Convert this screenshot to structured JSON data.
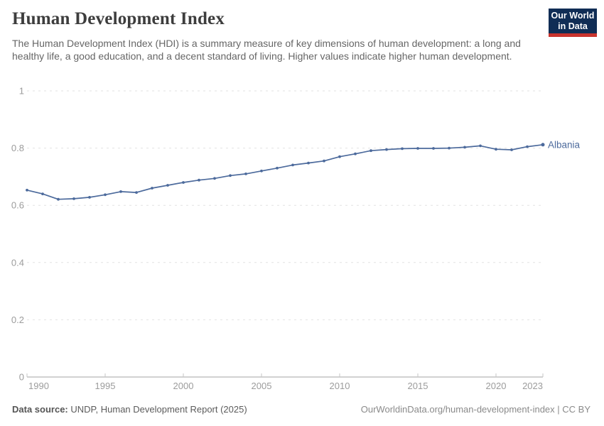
{
  "header": {
    "title": "Human Development Index",
    "subtitle": "The Human Development Index (HDI) is a summary measure of key dimensions of human development: a long and healthy life, a good education, and a decent standard of living. Higher values indicate higher human development.",
    "logo": {
      "line1": "Our World",
      "line2": "in Data"
    }
  },
  "chart_data": {
    "type": "line",
    "title": "Human Development Index",
    "xlabel": "",
    "ylabel": "",
    "xlim": [
      1990,
      2023
    ],
    "ylim": [
      0,
      1
    ],
    "grid": "horizontal-dashed",
    "legend_position": "end-of-line-label",
    "xticks": [
      1990,
      1995,
      2000,
      2005,
      2010,
      2015,
      2020,
      2023
    ],
    "yticks": [
      0,
      0.2,
      0.4,
      0.6,
      0.8,
      1
    ],
    "ytick_labels": [
      "0",
      "0.2",
      "0.4",
      "0.6",
      "0.8",
      "1"
    ],
    "x": [
      1990,
      1991,
      1992,
      1993,
      1994,
      1995,
      1996,
      1997,
      1998,
      1999,
      2000,
      2001,
      2002,
      2003,
      2004,
      2005,
      2006,
      2007,
      2008,
      2009,
      2010,
      2011,
      2012,
      2013,
      2014,
      2015,
      2016,
      2017,
      2018,
      2019,
      2020,
      2021,
      2022,
      2023
    ],
    "series": [
      {
        "name": "Albania",
        "color": "#4C6A9C",
        "values": [
          0.653,
          0.64,
          0.621,
          0.623,
          0.628,
          0.637,
          0.648,
          0.645,
          0.66,
          0.67,
          0.68,
          0.688,
          0.694,
          0.704,
          0.71,
          0.72,
          0.73,
          0.741,
          0.748,
          0.755,
          0.77,
          0.78,
          0.791,
          0.795,
          0.798,
          0.799,
          0.799,
          0.8,
          0.803,
          0.808,
          0.796,
          0.794,
          0.805,
          0.812
        ]
      }
    ]
  },
  "footer": {
    "source_label": "Data source:",
    "source_text": " UNDP, Human Development Report (2025)",
    "attribution": "OurWorldinData.org/human-development-index | CC BY"
  },
  "colors": {
    "line": "#4C6A9C",
    "grid": "#e2e2e2",
    "axis": "#a3a3a3",
    "tick_mark": "#c6c6c6",
    "tick_label": "#9c9c9c",
    "logo_bg": "#102d55",
    "logo_stripe": "#c9342e"
  }
}
